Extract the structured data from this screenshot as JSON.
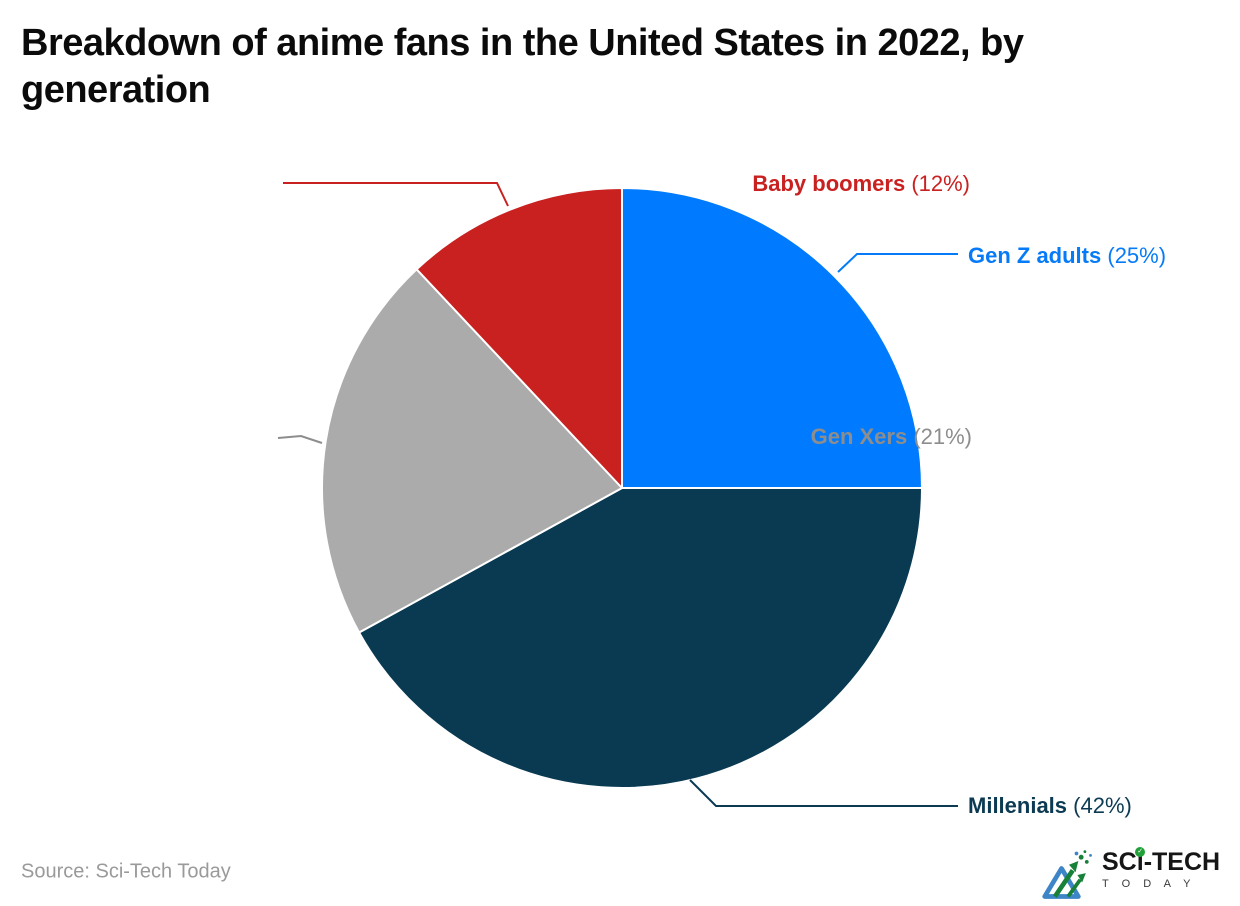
{
  "header": {
    "title": "Breakdown of anime fans in the United States in 2022, by generation"
  },
  "chart_data": {
    "type": "pie",
    "title": "Breakdown of anime fans in the United States in 2022, by generation",
    "start_angle_deg": 0,
    "direction": "clockwise",
    "legend": "callout-labels",
    "total": 100,
    "slices": [
      {
        "label": "Gen Z adults",
        "value": 25,
        "pct_text": "(25%)",
        "color": "#007bff",
        "label_color": "#077bf7"
      },
      {
        "label": "Millenials",
        "value": 42,
        "pct_text": "(42%)",
        "color": "#093a52",
        "label_color": "#0b3a52"
      },
      {
        "label": "Gen Xers",
        "value": 21,
        "pct_text": "(21%)",
        "color": "#ababab",
        "label_color": "#8d8d8d"
      },
      {
        "label": "Baby boomers",
        "value": 12,
        "pct_text": "(12%)",
        "color": "#c92020",
        "label_color": "#c92020"
      }
    ]
  },
  "footer": {
    "source": "Source: Sci-Tech Today"
  },
  "logo": {
    "brand": "SCi-TECH TODAY",
    "icon": "mountain-growth-arrows-logo",
    "main_pre": "SC",
    "i_char": "ı",
    "check_icon": "✓",
    "main_post": "-TECH",
    "sub": "T O D A Y",
    "colors": {
      "blue": "#3d85c6",
      "green": "#188038",
      "check_bg": "#21a038"
    }
  }
}
